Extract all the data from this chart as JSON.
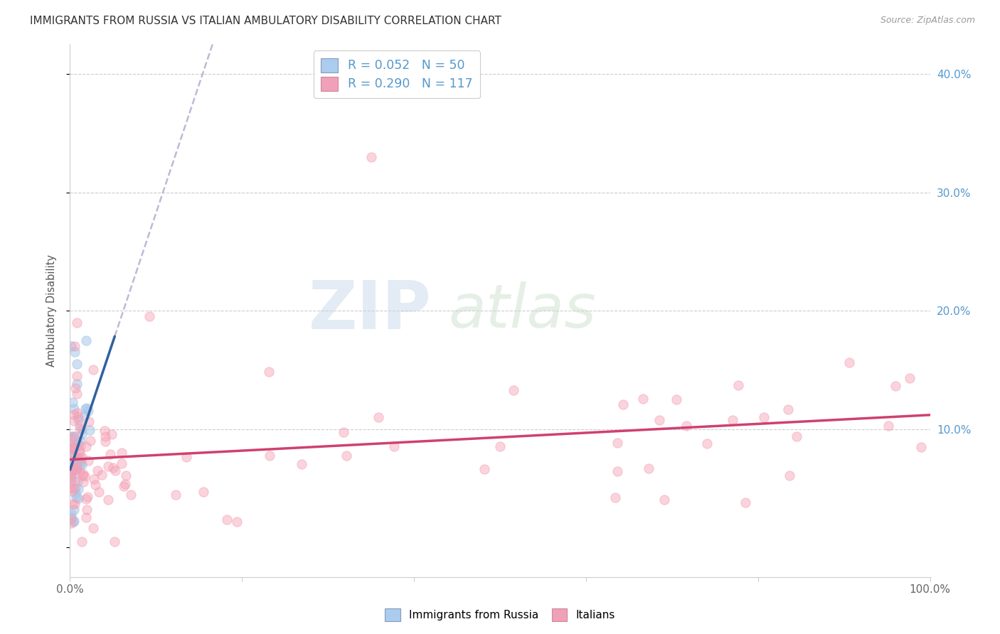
{
  "title": "IMMIGRANTS FROM RUSSIA VS ITALIAN AMBULATORY DISABILITY CORRELATION CHART",
  "source": "Source: ZipAtlas.com",
  "ylabel": "Ambulatory Disability",
  "color_blue": "#a8c8e8",
  "color_pink": "#f4a0b5",
  "color_trend_blue": "#3060a0",
  "color_trend_pink": "#d04070",
  "color_trend_dashed": "#aaaacc",
  "watermark_zip": "ZIP",
  "watermark_atlas": "atlas",
  "xmin": 0.0,
  "xmax": 1.0,
  "ymin": -0.025,
  "ymax": 0.425
}
